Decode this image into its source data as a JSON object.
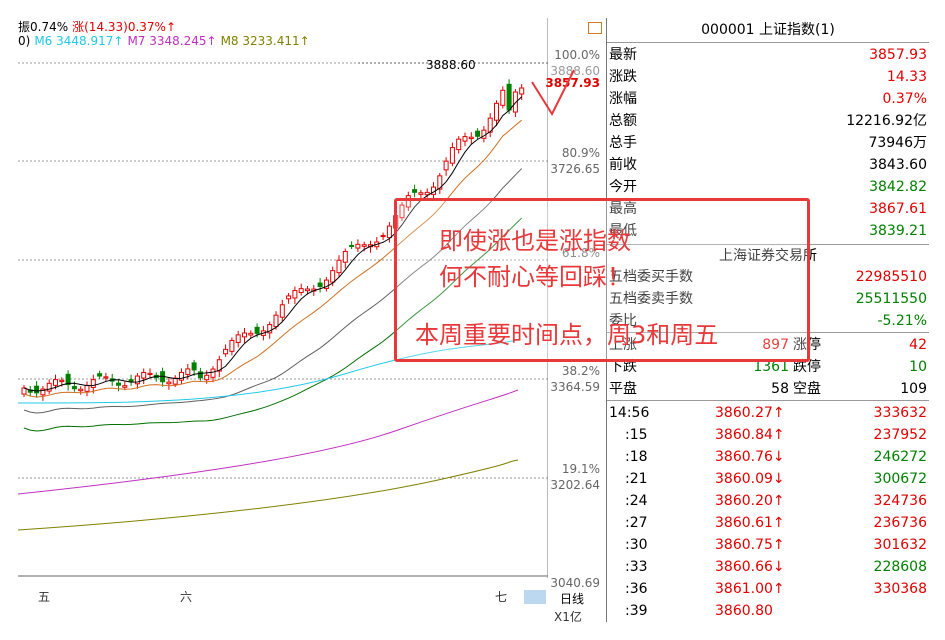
{
  "legend": {
    "left_fragment": "振0.74%",
    "change": "涨(14.33)0.37%↑",
    "zero": "0)",
    "m6": "M6 3448.917↑",
    "m7": "M7 3348.245↑",
    "m8": "M8 3233.411↑"
  },
  "axis": {
    "pct_labels": [
      "100.0%",
      "80.9%",
      "61.8%",
      "38.2%",
      "19.1%"
    ],
    "price_labels": [
      "3888.60",
      "3726.65",
      "3364.59",
      "3202.64",
      "3040.69"
    ],
    "high_marker": "3888.60",
    "last_price_marker": "3857.93",
    "x_ticks": [
      "五",
      "六",
      "七"
    ],
    "day_tab": "日线",
    "vol_unit": "X1亿"
  },
  "overlay": {
    "line1": "即使涨也是涨指数",
    "line2": "何不耐心等回踩！",
    "line3": "本周重要时间点，周3和周五"
  },
  "panel": {
    "title": "000001 上证指数(1)",
    "quotes": [
      {
        "label": "最新",
        "value": "3857.93",
        "color": "red"
      },
      {
        "label": "涨跌",
        "value": "14.33",
        "color": "red"
      },
      {
        "label": "涨幅",
        "value": "0.37%",
        "color": "red"
      },
      {
        "label": "总额",
        "value": "12216.92亿",
        "color": "black"
      },
      {
        "label": "总手",
        "value": "73946万",
        "color": "black"
      },
      {
        "label": "前收",
        "value": "3843.60",
        "color": "black"
      },
      {
        "label": "今开",
        "value": "3842.82",
        "color": "green"
      },
      {
        "label": "最高",
        "value": "3867.61",
        "color": "red"
      },
      {
        "label": "最低",
        "value": "3839.21",
        "color": "green"
      }
    ],
    "exchange": "上海证券交易所",
    "book": [
      {
        "label": "五档委买手数",
        "value": "22985510",
        "color": "red"
      },
      {
        "label": "五档委卖手数",
        "value": "25511550",
        "color": "green"
      },
      {
        "label": "委比",
        "value": "-5.21%",
        "color": "green"
      }
    ],
    "breadth": [
      {
        "label": "上涨",
        "v1": "897",
        "mid": "涨停",
        "v2": "42",
        "c1": "red",
        "c2": "red"
      },
      {
        "label": "下跌",
        "v1": "1361",
        "mid": "跌停",
        "v2": "10",
        "c1": "green",
        "c2": "green"
      },
      {
        "label": "平盘",
        "v1": "58",
        "mid": "空盘",
        "v2": "109",
        "c1": "black",
        "c2": "black"
      }
    ],
    "ticks": [
      {
        "time": "14:56",
        "price": "3860.27↑",
        "pc": "red",
        "vol": "333632",
        "vc": "red"
      },
      {
        "time": ":15",
        "price": "3860.84↑",
        "pc": "red",
        "vol": "237952",
        "vc": "red"
      },
      {
        "time": ":18",
        "price": "3860.76↓",
        "pc": "red",
        "vol": "246272",
        "vc": "green"
      },
      {
        "time": ":21",
        "price": "3860.09↓",
        "pc": "red",
        "vol": "300672",
        "vc": "green"
      },
      {
        "time": ":24",
        "price": "3860.20↑",
        "pc": "red",
        "vol": "324736",
        "vc": "red"
      },
      {
        "time": ":27",
        "price": "3860.61↑",
        "pc": "red",
        "vol": "236736",
        "vc": "red"
      },
      {
        "time": ":30",
        "price": "3860.75↑",
        "pc": "red",
        "vol": "301632",
        "vc": "red"
      },
      {
        "time": ":33",
        "price": "3860.66↓",
        "pc": "red",
        "vol": "228608",
        "vc": "green"
      },
      {
        "time": ":36",
        "price": "3861.00↑",
        "pc": "red",
        "vol": "330368",
        "vc": "red"
      },
      {
        "time": ":39",
        "price": "3860.80",
        "pc": "red",
        "vol": "",
        "vc": "red"
      }
    ]
  },
  "colors": {
    "up": "#e00000",
    "down": "#008000",
    "ma5": "#000000",
    "ma10": "#d07020",
    "ma20": "#606060",
    "ma30": "#007000",
    "ma6": "#20c8e8",
    "ma7": "#c030c0",
    "ma8": "#808000",
    "note": "#e8383a"
  }
}
